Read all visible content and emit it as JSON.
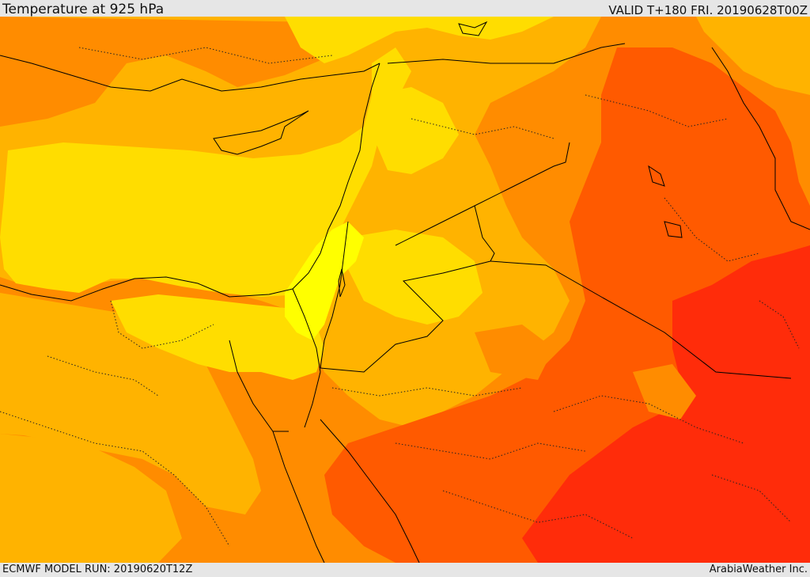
{
  "header": {
    "title": "Temperature at 925 hPa",
    "valid": "VALID T+180 FRI. 20190628T00Z"
  },
  "footer": {
    "run": "ECMWF MODEL RUN: 20190620T12Z",
    "credit": "ArabiaWeather Inc."
  },
  "map": {
    "region": "Eastern Mediterranean and Middle East",
    "palette": {
      "lightest": "#ffff00",
      "light": "#ffdd00",
      "mid": "#ffb300",
      "warm": "#ff8c00",
      "hot": "#ff5a00",
      "hottest": "#ff2c0a"
    },
    "boundary_color": "#000000"
  }
}
